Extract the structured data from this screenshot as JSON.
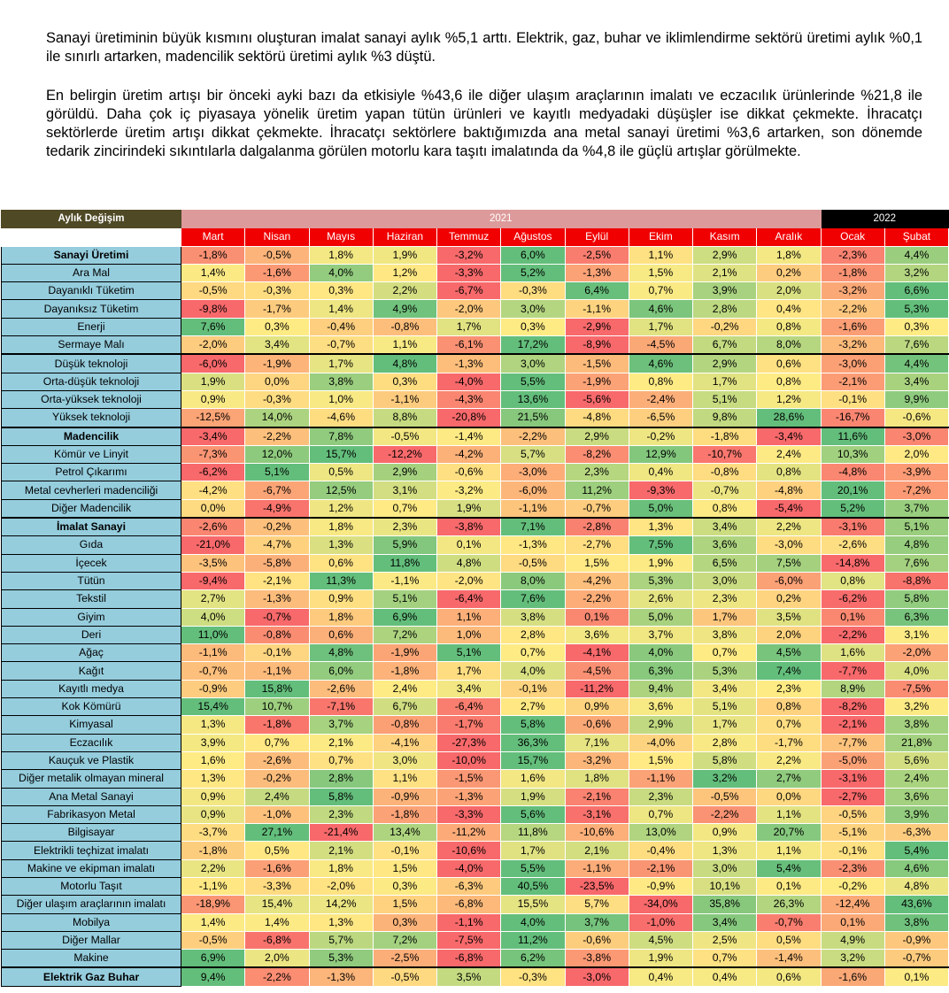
{
  "paragraphs": [
    "Sanayi üretiminin büyük kısmını oluşturan imalat sanayi aylık %5,1 arttı. Elektrik, gaz, buhar ve iklimlendirme sektörü üretimi aylık %0,1 ile sınırlı artarken, madencilik sektörü üretimi aylık %3 düştü.",
    "En belirgin üretim artışı bir önceki ayki bazı da etkisiyle %43,6 ile diğer ulaşım araçlarının imalatı ve eczacılık ürünlerinde %21,8 ile görüldü. Daha çok iç piyasaya yönelik üretim yapan tütün ürünleri ve kayıtlı medyadaki düşüşler ise dikkat çekmekte. İhracatçı sektörlerde üretim artışı dikkat çekmekte. İhracatçı sektörlere baktığımızda ana metal sanayi üretimi %3,6 artarken, son dönemde tedarik zincirindeki sıkıntılarla dalgalanma görülen motorlu kara taşıtı imalatında da %4,8 ile güçlü artışlar görülmekte."
  ],
  "table": {
    "title": "Aylık Değişim",
    "year_2021": "2021",
    "year_2022": "2022",
    "months": [
      "Mart",
      "Nisan",
      "Mayıs",
      "Haziran",
      "Temmuz",
      "Ağustos",
      "Eylül",
      "Ekim",
      "Kasım",
      "Aralık",
      "Ocak",
      "Şubat"
    ],
    "colors": {
      "low": "#F8696B",
      "mid": "#FFEB84",
      "high": "#63BE7B",
      "header_red": "#F00000",
      "label_bg": "#95CDDD"
    },
    "rows": [
      {
        "label": "Sanayi Üretimi",
        "bold": true,
        "sep": false,
        "values": [
          "-1,8%",
          "-0,5%",
          "1,8%",
          "1,9%",
          "-3,2%",
          "6,0%",
          "-2,5%",
          "1,1%",
          "2,9%",
          "1,8%",
          "-2,3%",
          "4,4%"
        ]
      },
      {
        "label": "Ara Mal",
        "bold": false,
        "sep": false,
        "values": [
          "1,4%",
          "-1,6%",
          "4,0%",
          "1,2%",
          "-3,3%",
          "5,2%",
          "-1,3%",
          "1,5%",
          "2,1%",
          "0,2%",
          "-1,8%",
          "3,2%"
        ]
      },
      {
        "label": "Dayanıklı Tüketim",
        "bold": false,
        "sep": false,
        "values": [
          "-0,5%",
          "-0,3%",
          "0,3%",
          "2,2%",
          "-6,7%",
          "-0,3%",
          "6,4%",
          "0,7%",
          "3,9%",
          "2,0%",
          "-3,2%",
          "6,6%"
        ]
      },
      {
        "label": "Dayanıksız Tüketim",
        "bold": false,
        "sep": false,
        "values": [
          "-9,8%",
          "-1,7%",
          "1,4%",
          "4,9%",
          "-2,0%",
          "3,0%",
          "-1,1%",
          "4,6%",
          "2,8%",
          "0,4%",
          "-2,2%",
          "5,3%"
        ]
      },
      {
        "label": "Enerji",
        "bold": false,
        "sep": false,
        "values": [
          "7,6%",
          "0,3%",
          "-0,4%",
          "-0,8%",
          "1,7%",
          "0,3%",
          "-2,9%",
          "1,7%",
          "-0,2%",
          "0,8%",
          "-1,6%",
          "0,3%"
        ]
      },
      {
        "label": "Sermaye Malı",
        "bold": false,
        "sep": false,
        "values": [
          "-2,0%",
          "3,4%",
          "-0,7%",
          "1,1%",
          "-6,1%",
          "17,2%",
          "-8,9%",
          "-4,5%",
          "6,7%",
          "8,0%",
          "-3,2%",
          "7,6%"
        ]
      },
      {
        "label": "Düşük teknoloji",
        "bold": false,
        "sep": true,
        "values": [
          "-6,0%",
          "-1,9%",
          "1,7%",
          "4,8%",
          "-1,3%",
          "3,0%",
          "-1,5%",
          "4,6%",
          "2,9%",
          "0,6%",
          "-3,0%",
          "4,4%"
        ]
      },
      {
        "label": "Orta-düşük teknoloji",
        "bold": false,
        "sep": false,
        "values": [
          "1,9%",
          "0,0%",
          "3,8%",
          "0,3%",
          "-4,0%",
          "5,5%",
          "-1,9%",
          "0,8%",
          "1,7%",
          "0,8%",
          "-2,1%",
          "3,4%"
        ]
      },
      {
        "label": "Orta-yüksek teknoloji",
        "bold": false,
        "sep": false,
        "values": [
          "0,9%",
          "-0,3%",
          "1,0%",
          "-1,1%",
          "-4,3%",
          "13,6%",
          "-5,6%",
          "-2,4%",
          "5,1%",
          "1,2%",
          "-0,1%",
          "9,9%"
        ]
      },
      {
        "label": "Yüksek teknoloji",
        "bold": false,
        "sep": false,
        "values": [
          "-12,5%",
          "14,0%",
          "-4,6%",
          "8,8%",
          "-20,8%",
          "21,5%",
          "-4,8%",
          "-6,5%",
          "9,8%",
          "28,6%",
          "-16,7%",
          "-0,6%"
        ]
      },
      {
        "label": "Madencilik",
        "bold": true,
        "sep": true,
        "values": [
          "-3,4%",
          "-2,2%",
          "7,8%",
          "-0,5%",
          "-1,4%",
          "-2,2%",
          "2,9%",
          "-0,2%",
          "-1,8%",
          "-3,4%",
          "11,6%",
          "-3,0%"
        ]
      },
      {
        "label": "Kömür ve Linyit",
        "bold": false,
        "sep": false,
        "values": [
          "-7,3%",
          "12,0%",
          "15,7%",
          "-12,2%",
          "-4,2%",
          "5,7%",
          "-8,2%",
          "12,9%",
          "-10,7%",
          "2,4%",
          "10,3%",
          "2,0%"
        ]
      },
      {
        "label": "Petrol Çıkarımı",
        "bold": false,
        "sep": false,
        "values": [
          "-6,2%",
          "5,1%",
          "0,5%",
          "2,9%",
          "-0,6%",
          "-3,0%",
          "2,3%",
          "0,4%",
          "-0,8%",
          "0,8%",
          "-4,8%",
          "-3,9%"
        ]
      },
      {
        "label": "Metal cevherleri madenciliği",
        "bold": false,
        "sep": false,
        "values": [
          "-4,2%",
          "-6,7%",
          "12,5%",
          "3,1%",
          "-3,2%",
          "-6,0%",
          "11,2%",
          "-9,3%",
          "-0,7%",
          "-4,8%",
          "20,1%",
          "-7,2%"
        ]
      },
      {
        "label": "Diğer Madencilik",
        "bold": false,
        "sep": false,
        "values": [
          "0,0%",
          "-4,9%",
          "1,2%",
          "0,7%",
          "1,9%",
          "-1,1%",
          "-0,7%",
          "5,0%",
          "0,8%",
          "-5,4%",
          "5,2%",
          "3,7%"
        ]
      },
      {
        "label": "İmalat Sanayi",
        "bold": true,
        "sep": true,
        "values": [
          "-2,6%",
          "-0,2%",
          "1,8%",
          "2,3%",
          "-3,8%",
          "7,1%",
          "-2,8%",
          "1,3%",
          "3,4%",
          "2,2%",
          "-3,1%",
          "5,1%"
        ]
      },
      {
        "label": "Gıda",
        "bold": false,
        "sep": false,
        "values": [
          "-21,0%",
          "-4,7%",
          "1,3%",
          "5,9%",
          "0,1%",
          "-1,3%",
          "-2,7%",
          "7,5%",
          "3,6%",
          "-3,0%",
          "-2,6%",
          "4,8%"
        ]
      },
      {
        "label": "İçecek",
        "bold": false,
        "sep": false,
        "values": [
          "-3,5%",
          "-5,8%",
          "0,6%",
          "11,8%",
          "4,8%",
          "-0,5%",
          "1,5%",
          "1,9%",
          "6,5%",
          "7,5%",
          "-14,8%",
          "7,6%"
        ]
      },
      {
        "label": "Tütün",
        "bold": false,
        "sep": false,
        "values": [
          "-9,4%",
          "-2,1%",
          "11,3%",
          "-1,1%",
          "-2,0%",
          "8,0%",
          "-4,2%",
          "5,3%",
          "3,0%",
          "-6,0%",
          "0,8%",
          "-8,8%"
        ]
      },
      {
        "label": "Tekstil",
        "bold": false,
        "sep": false,
        "values": [
          "2,7%",
          "-1,3%",
          "0,9%",
          "5,1%",
          "-6,4%",
          "7,6%",
          "-2,2%",
          "2,6%",
          "2,3%",
          "0,2%",
          "-6,2%",
          "5,8%"
        ]
      },
      {
        "label": "Giyim",
        "bold": false,
        "sep": false,
        "values": [
          "4,0%",
          "-0,7%",
          "1,8%",
          "6,9%",
          "1,1%",
          "3,8%",
          "0,1%",
          "5,0%",
          "1,7%",
          "3,5%",
          "0,1%",
          "6,3%"
        ]
      },
      {
        "label": "Deri",
        "bold": false,
        "sep": false,
        "values": [
          "11,0%",
          "-0,8%",
          "0,6%",
          "7,2%",
          "1,0%",
          "2,8%",
          "3,6%",
          "3,7%",
          "3,8%",
          "2,0%",
          "-2,2%",
          "3,1%"
        ]
      },
      {
        "label": "Ağaç",
        "bold": false,
        "sep": false,
        "values": [
          "-1,1%",
          "-0,1%",
          "4,8%",
          "-1,9%",
          "5,1%",
          "0,7%",
          "-4,1%",
          "4,0%",
          "0,7%",
          "4,5%",
          "1,6%",
          "-2,0%"
        ]
      },
      {
        "label": "Kağıt",
        "bold": false,
        "sep": false,
        "values": [
          "-0,7%",
          "-1,1%",
          "6,0%",
          "-1,8%",
          "1,7%",
          "4,0%",
          "-4,5%",
          "6,3%",
          "5,3%",
          "7,4%",
          "-7,7%",
          "4,0%"
        ]
      },
      {
        "label": "Kayıtlı medya",
        "bold": false,
        "sep": false,
        "values": [
          "-0,9%",
          "15,8%",
          "-2,6%",
          "2,4%",
          "3,4%",
          "-0,1%",
          "-11,2%",
          "9,4%",
          "3,4%",
          "2,3%",
          "8,9%",
          "-7,5%"
        ]
      },
      {
        "label": "Kok Kömürü",
        "bold": false,
        "sep": false,
        "values": [
          "15,4%",
          "10,7%",
          "-7,1%",
          "6,7%",
          "-6,4%",
          "2,7%",
          "0,9%",
          "3,6%",
          "5,1%",
          "0,8%",
          "-8,2%",
          "3,2%"
        ]
      },
      {
        "label": "Kimyasal",
        "bold": false,
        "sep": false,
        "values": [
          "1,3%",
          "-1,8%",
          "3,7%",
          "-0,8%",
          "-1,7%",
          "5,8%",
          "-0,6%",
          "2,9%",
          "1,7%",
          "0,7%",
          "-2,1%",
          "3,8%"
        ]
      },
      {
        "label": "Eczacılık",
        "bold": false,
        "sep": false,
        "values": [
          "3,9%",
          "0,7%",
          "2,1%",
          "-4,1%",
          "-27,3%",
          "36,3%",
          "7,1%",
          "-4,0%",
          "2,8%",
          "-1,7%",
          "-7,7%",
          "21,8%"
        ]
      },
      {
        "label": "Kauçuk ve Plastik",
        "bold": false,
        "sep": false,
        "values": [
          "1,6%",
          "-2,6%",
          "0,7%",
          "3,0%",
          "-10,0%",
          "15,7%",
          "-3,2%",
          "1,5%",
          "5,8%",
          "2,2%",
          "-5,0%",
          "5,6%"
        ]
      },
      {
        "label": "Diğer metalik olmayan mineral",
        "bold": false,
        "sep": false,
        "values": [
          "1,3%",
          "-0,2%",
          "2,8%",
          "1,1%",
          "-1,5%",
          "1,6%",
          "1,8%",
          "-1,1%",
          "3,2%",
          "2,7%",
          "-3,1%",
          "2,4%"
        ]
      },
      {
        "label": "Ana Metal Sanayi",
        "bold": false,
        "sep": false,
        "values": [
          "0,9%",
          "2,4%",
          "5,8%",
          "-0,9%",
          "-1,3%",
          "1,9%",
          "-2,1%",
          "2,3%",
          "-0,5%",
          "0,0%",
          "-2,7%",
          "3,6%"
        ]
      },
      {
        "label": "Fabrikasyon Metal",
        "bold": false,
        "sep": false,
        "values": [
          "0,9%",
          "-1,0%",
          "2,3%",
          "-1,8%",
          "-3,3%",
          "5,6%",
          "-3,1%",
          "0,7%",
          "-2,2%",
          "1,1%",
          "-0,5%",
          "3,9%"
        ]
      },
      {
        "label": "Bilgisayar",
        "bold": false,
        "sep": false,
        "values": [
          "-3,7%",
          "27,1%",
          "-21,4%",
          "13,4%",
          "-11,2%",
          "11,8%",
          "-10,6%",
          "13,0%",
          "0,9%",
          "20,7%",
          "-5,1%",
          "-6,3%"
        ]
      },
      {
        "label": "Elektrikli teçhizat imalatı",
        "bold": false,
        "sep": false,
        "values": [
          "-1,8%",
          "0,5%",
          "2,1%",
          "-0,1%",
          "-10,6%",
          "1,7%",
          "2,1%",
          "-0,4%",
          "1,3%",
          "1,1%",
          "-0,1%",
          "5,4%"
        ]
      },
      {
        "label": "Makine ve ekipman imalatı",
        "bold": false,
        "sep": false,
        "values": [
          "2,2%",
          "-1,6%",
          "1,8%",
          "1,5%",
          "-4,0%",
          "5,5%",
          "-1,1%",
          "-2,1%",
          "3,0%",
          "5,4%",
          "-2,3%",
          "4,6%"
        ]
      },
      {
        "label": "Motorlu Taşıt",
        "bold": false,
        "sep": false,
        "values": [
          "-1,1%",
          "-3,3%",
          "-2,0%",
          "0,3%",
          "-6,3%",
          "40,5%",
          "-23,5%",
          "-0,9%",
          "10,1%",
          "0,1%",
          "-0,2%",
          "4,8%"
        ]
      },
      {
        "label": "Diğer ulaşım araçlarının imalatı",
        "bold": false,
        "sep": false,
        "values": [
          "-18,9%",
          "15,4%",
          "14,2%",
          "1,5%",
          "-6,8%",
          "15,5%",
          "5,7%",
          "-34,0%",
          "35,8%",
          "26,3%",
          "-12,4%",
          "43,6%"
        ]
      },
      {
        "label": "Mobilya",
        "bold": false,
        "sep": false,
        "values": [
          "1,4%",
          "1,4%",
          "1,3%",
          "0,3%",
          "-1,1%",
          "4,0%",
          "3,7%",
          "-1,0%",
          "3,4%",
          "-0,7%",
          "0,1%",
          "3,8%"
        ]
      },
      {
        "label": "Diğer Mallar",
        "bold": false,
        "sep": false,
        "values": [
          "-0,5%",
          "-6,8%",
          "5,7%",
          "7,2%",
          "-7,5%",
          "11,2%",
          "-0,6%",
          "4,5%",
          "2,5%",
          "0,5%",
          "4,9%",
          "-0,9%"
        ]
      },
      {
        "label": "Makine",
        "bold": false,
        "sep": false,
        "values": [
          "6,9%",
          "2,0%",
          "5,3%",
          "-2,5%",
          "-6,8%",
          "6,2%",
          "-3,8%",
          "1,9%",
          "0,7%",
          "-1,4%",
          "3,2%",
          "-0,7%"
        ]
      },
      {
        "label": "Elektrik Gaz Buhar",
        "bold": true,
        "sep": true,
        "values": [
          "9,4%",
          "-2,2%",
          "-1,3%",
          "-0,5%",
          "3,5%",
          "-0,3%",
          "-3,0%",
          "0,4%",
          "0,4%",
          "0,6%",
          "-1,6%",
          "0,1%"
        ]
      }
    ]
  }
}
